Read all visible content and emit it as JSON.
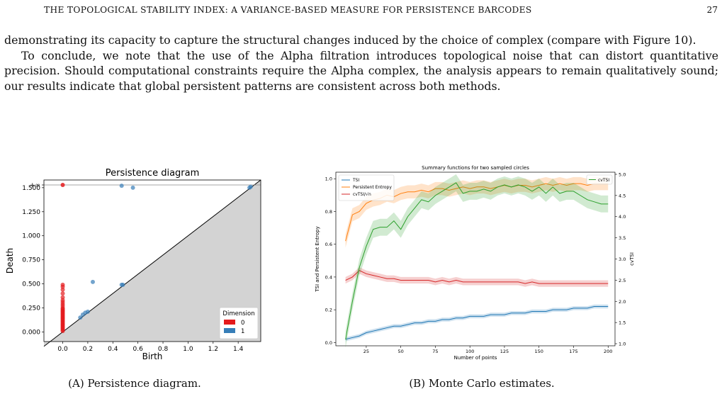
{
  "header": {
    "title": "THE TOPOLOGICAL STABILITY INDEX: A VARIANCE-BASED MEASURE FOR PERSISTENCE BARCODES",
    "page_number": "27"
  },
  "paragraphs": [
    "demonstrating its capacity to capture the structural changes induced by the choice of complex (compare with Figure 10).",
    "To conclude, we note that the use of the Alpha filtration introduces topological noise that can distort quantitative precision. Should computational constraints require the Alpha complex, the analysis appears to remain qualitatively sound; our results indicate that global persistent patterns are consistent across both methods."
  ],
  "captions": {
    "a_label": "(A)",
    "a_text": "Persistence diagram.",
    "b_label": "(B)",
    "b_text": "Monte Carlo estimates."
  },
  "chart_data": [
    {
      "type": "scatter",
      "title": "Persistence diagram",
      "xlabel": "Birth",
      "ylabel": "Death",
      "xlim": [
        -0.15,
        1.58
      ],
      "ylim": [
        -0.1,
        1.58
      ],
      "xticks": [
        "0.0",
        "0.2",
        "0.4",
        "0.6",
        "0.8",
        "1.0",
        "1.2",
        "1.4"
      ],
      "yticks": [
        "0.000",
        "0.250",
        "0.500",
        "0.750",
        "1.000",
        "1.250",
        "1.500"
      ],
      "infinity_label": "+∞",
      "legend": {
        "title": "Dimension",
        "entries": [
          "0",
          "1"
        ],
        "position": "lower-right"
      },
      "colors": {
        "dim0": "#e41a1c",
        "dim1": "#377eb8"
      },
      "series": [
        {
          "name": "0",
          "points": [
            [
              0,
              0.01
            ],
            [
              0,
              0.02
            ],
            [
              0,
              0.03
            ],
            [
              0,
              0.04
            ],
            [
              0,
              0.05
            ],
            [
              0,
              0.06
            ],
            [
              0,
              0.07
            ],
            [
              0,
              0.08
            ],
            [
              0,
              0.09
            ],
            [
              0,
              0.1
            ],
            [
              0,
              0.11
            ],
            [
              0,
              0.12
            ],
            [
              0,
              0.13
            ],
            [
              0,
              0.14
            ],
            [
              0,
              0.15
            ],
            [
              0,
              0.16
            ],
            [
              0,
              0.17
            ],
            [
              0,
              0.18
            ],
            [
              0,
              0.19
            ],
            [
              0,
              0.2
            ],
            [
              0,
              0.21
            ],
            [
              0,
              0.22
            ],
            [
              0,
              0.23
            ],
            [
              0,
              0.24
            ],
            [
              0,
              0.25
            ],
            [
              0,
              0.27
            ],
            [
              0,
              0.29
            ],
            [
              0,
              0.31
            ],
            [
              0,
              0.33
            ],
            [
              0,
              0.36
            ],
            [
              0,
              0.4
            ],
            [
              0,
              0.44
            ],
            [
              0,
              0.47
            ],
            [
              0,
              0.49
            ]
          ],
          "infinite": [
            0
          ]
        },
        {
          "name": "1",
          "points": [
            [
              0.14,
              0.15
            ],
            [
              0.16,
              0.18
            ],
            [
              0.18,
              0.2
            ],
            [
              0.2,
              0.21
            ],
            [
              0.24,
              0.52
            ],
            [
              0.47,
              0.49
            ],
            [
              0.48,
              0.49
            ],
            [
              0.47,
              1.52
            ],
            [
              0.56,
              1.5
            ],
            [
              1.49,
              1.5
            ],
            [
              1.5,
              1.51
            ]
          ]
        }
      ]
    },
    {
      "type": "line",
      "title": "Summary functions for two sampled circles",
      "xlabel": "Number of points",
      "ylabel": "TSI and Persistent Entropy",
      "ylabel_right": "cvTSI",
      "xlim": [
        3,
        205
      ],
      "ylim": [
        -0.02,
        1.04
      ],
      "ylim_right": [
        0.95,
        5.05
      ],
      "xticks": [
        25,
        50,
        75,
        100,
        125,
        150,
        175,
        200
      ],
      "yticks": [
        "0.0",
        "0.2",
        "0.4",
        "0.6",
        "0.8",
        "1.0"
      ],
      "yticks_right": [
        "1.0",
        "1.5",
        "2.0",
        "2.5",
        "3.0",
        "3.5",
        "4.0",
        "4.5",
        "5.0"
      ],
      "legend_left": {
        "position": "top-left",
        "entries": [
          "TSI",
          "Persistent Entropy",
          "cvTSI/√n"
        ]
      },
      "legend_right": {
        "position": "top-right",
        "entries": [
          "cvTSI"
        ]
      },
      "x": [
        10,
        15,
        20,
        25,
        30,
        35,
        40,
        45,
        50,
        55,
        60,
        65,
        70,
        75,
        80,
        85,
        90,
        95,
        100,
        105,
        110,
        115,
        120,
        125,
        130,
        135,
        140,
        145,
        150,
        155,
        160,
        165,
        170,
        175,
        180,
        185,
        190,
        195,
        200
      ],
      "series": [
        {
          "name": "TSI",
          "color": "#1f77b4",
          "axis": "left",
          "values": [
            0.02,
            0.03,
            0.04,
            0.06,
            0.07,
            0.08,
            0.09,
            0.1,
            0.1,
            0.11,
            0.12,
            0.12,
            0.13,
            0.13,
            0.14,
            0.14,
            0.15,
            0.15,
            0.16,
            0.16,
            0.16,
            0.17,
            0.17,
            0.17,
            0.18,
            0.18,
            0.18,
            0.19,
            0.19,
            0.19,
            0.2,
            0.2,
            0.2,
            0.21,
            0.21,
            0.21,
            0.22,
            0.22,
            0.22
          ],
          "band": 0.012
        },
        {
          "name": "Persistent Entropy",
          "color": "#ff7f0e",
          "axis": "left",
          "values": [
            0.62,
            0.78,
            0.8,
            0.85,
            0.87,
            0.88,
            0.9,
            0.89,
            0.91,
            0.92,
            0.92,
            0.93,
            0.92,
            0.94,
            0.94,
            0.93,
            0.94,
            0.95,
            0.94,
            0.95,
            0.95,
            0.94,
            0.95,
            0.96,
            0.95,
            0.96,
            0.96,
            0.95,
            0.96,
            0.97,
            0.96,
            0.97,
            0.96,
            0.97,
            0.97,
            0.96,
            0.97,
            0.97,
            0.97
          ],
          "band": 0.04
        },
        {
          "name": "cvTSI/√n",
          "color": "#d62728",
          "axis": "left",
          "values": [
            0.38,
            0.4,
            0.44,
            0.42,
            0.41,
            0.4,
            0.39,
            0.39,
            0.38,
            0.38,
            0.38,
            0.38,
            0.38,
            0.37,
            0.38,
            0.37,
            0.38,
            0.37,
            0.37,
            0.37,
            0.37,
            0.37,
            0.37,
            0.37,
            0.37,
            0.37,
            0.36,
            0.37,
            0.36,
            0.36,
            0.36,
            0.36,
            0.36,
            0.36,
            0.36,
            0.36,
            0.36,
            0.36,
            0.36
          ],
          "band": 0.02
        },
        {
          "name": "cvTSI",
          "color": "#2ca02c",
          "axis": "right",
          "values": [
            1.1,
            2.0,
            2.8,
            3.3,
            3.7,
            3.75,
            3.75,
            3.9,
            3.7,
            4.0,
            4.2,
            4.4,
            4.35,
            4.5,
            4.6,
            4.7,
            4.8,
            4.55,
            4.6,
            4.6,
            4.65,
            4.6,
            4.7,
            4.75,
            4.7,
            4.75,
            4.7,
            4.6,
            4.7,
            4.55,
            4.7,
            4.55,
            4.6,
            4.6,
            4.5,
            4.4,
            4.35,
            4.3,
            4.3
          ],
          "band": 0.2
        }
      ]
    }
  ]
}
